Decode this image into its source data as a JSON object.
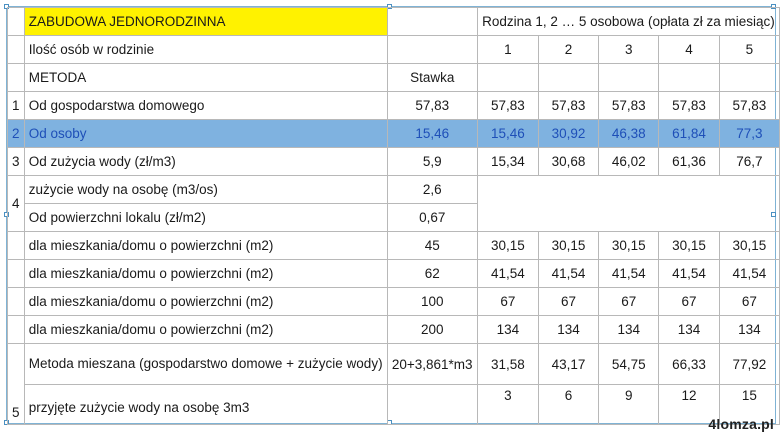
{
  "table": {
    "title": "ZABUDOWA JEDNORODZINNA",
    "header_right": "Rodzina 1, 2 … 5 osobowa (opłata zł za miesiąc)",
    "persons_label": "Ilość osób w rodzinie",
    "persons": [
      "1",
      "2",
      "3",
      "4",
      "5"
    ],
    "method_label": "METODA",
    "rate_label": "Stawka",
    "rows": [
      {
        "num": "1",
        "label": "Od gospodarstwa domowego",
        "rate": "57,83",
        "vals": [
          "57,83",
          "57,83",
          "57,83",
          "57,83",
          "57,83"
        ]
      },
      {
        "num": "2",
        "label": "Od osoby",
        "rate": "15,46",
        "vals": [
          "15,46",
          "30,92",
          "46,38",
          "61,84",
          "77,3"
        ]
      },
      {
        "num": "3",
        "label": "Od zużycia wody (zł/m3)",
        "rate": "5,9",
        "vals": [
          "15,34",
          "30,68",
          "46,02",
          "61,36",
          "76,7"
        ]
      },
      {
        "num": "",
        "label": "zużycie wody na osobę (m3/os)",
        "rate": "2,6"
      },
      {
        "num": "4",
        "label": "Od powierzchni lokalu (zł/m2)",
        "rate": "0,67"
      },
      {
        "num": "",
        "label": "dla mieszkania/domu o powierzchni (m2)",
        "rate": "45",
        "vals": [
          "30,15",
          "30,15",
          "30,15",
          "30,15",
          "30,15"
        ]
      },
      {
        "num": "",
        "label": "dla mieszkania/domu o powierzchni (m2)",
        "rate": "62",
        "vals": [
          "41,54",
          "41,54",
          "41,54",
          "41,54",
          "41,54"
        ]
      },
      {
        "num": "",
        "label": "dla mieszkania/domu o powierzchni (m2)",
        "rate": "100",
        "vals": [
          "67",
          "67",
          "67",
          "67",
          "67"
        ]
      },
      {
        "num": "",
        "label": "dla mieszkania/domu o powierzchni (m2)",
        "rate": "200",
        "vals": [
          "134",
          "134",
          "134",
          "134",
          "134"
        ]
      },
      {
        "num": "5",
        "label": "Metoda mieszana (gospodarstwo domowe + zużycie wody)",
        "rate": "20+3,861*m3",
        "vals": [
          "31,58",
          "43,17",
          "54,75",
          "66,33",
          "77,92"
        ]
      },
      {
        "num": "",
        "label": "przyjęte zużycie wody na osobę 3m3",
        "rate": "",
        "vals": [
          "3",
          "6",
          "9",
          "12",
          "15"
        ]
      }
    ]
  },
  "watermark": "4lomza.pl",
  "colors": {
    "title_bg": "#fff200",
    "selected_row_bg": "#7fb2e0",
    "selected_text": "#1e4fb8"
  }
}
